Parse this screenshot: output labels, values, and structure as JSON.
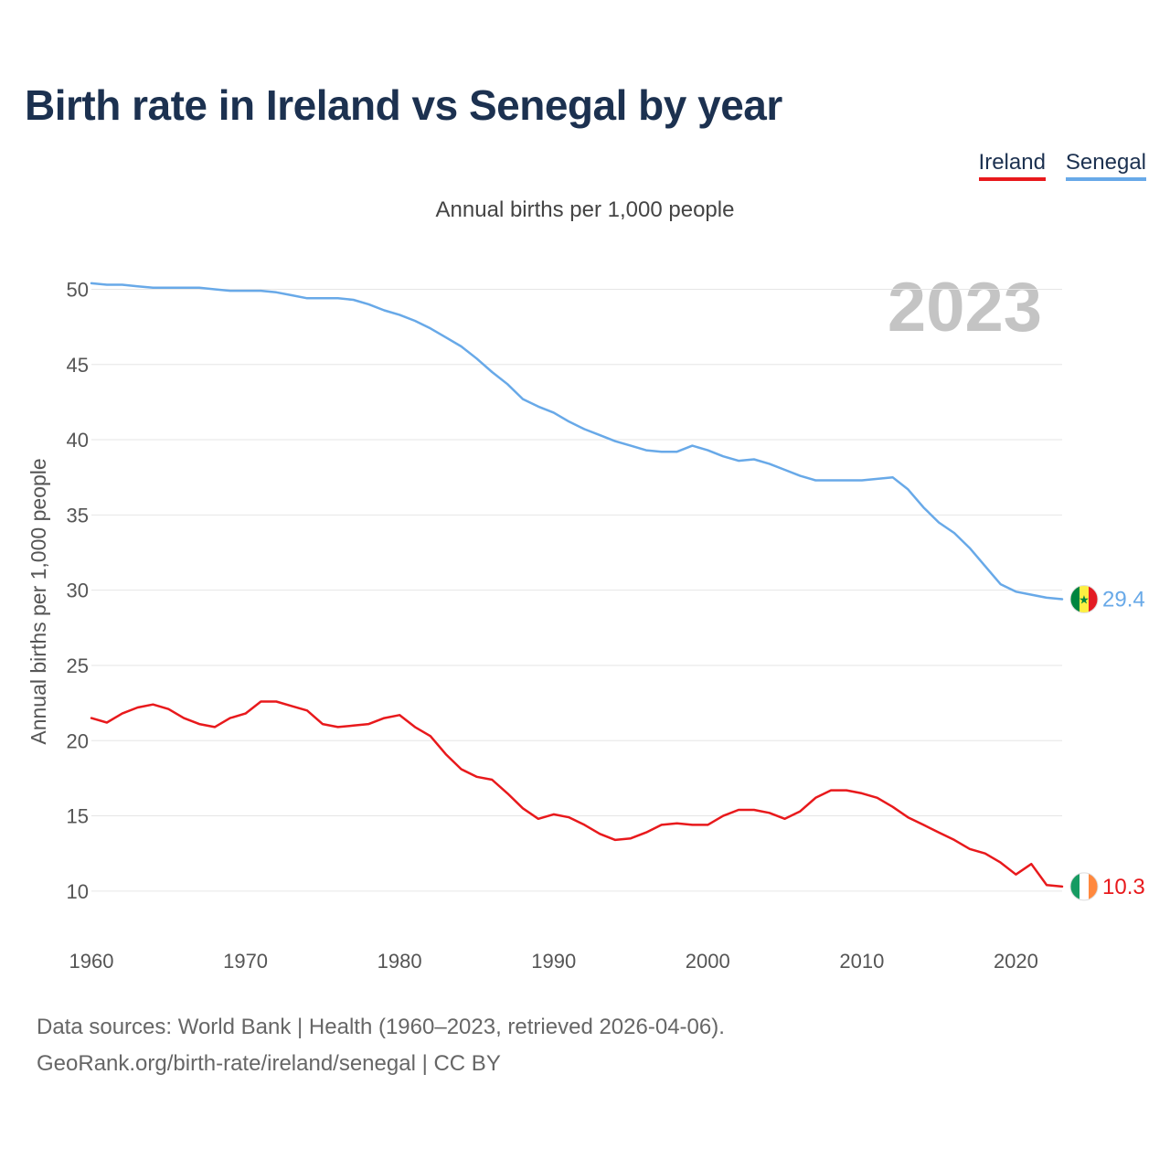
{
  "chart_data": {
    "type": "line",
    "title": "Birth rate in Ireland vs Senegal by year",
    "subtitle": "Annual births per 1,000 people",
    "ylabel": "Annual births per 1,000 people",
    "xlabel": "",
    "year_label": "2023",
    "xlim": [
      1960,
      2023
    ],
    "ylim": [
      7.5,
      51
    ],
    "yticks": [
      10,
      15,
      20,
      25,
      30,
      35,
      40,
      45,
      50
    ],
    "xticks": [
      1960,
      1970,
      1980,
      1990,
      2000,
      2010,
      2020
    ],
    "x": [
      1960,
      1961,
      1962,
      1963,
      1964,
      1965,
      1966,
      1967,
      1968,
      1969,
      1970,
      1971,
      1972,
      1973,
      1974,
      1975,
      1976,
      1977,
      1978,
      1979,
      1980,
      1981,
      1982,
      1983,
      1984,
      1985,
      1986,
      1987,
      1988,
      1989,
      1990,
      1991,
      1992,
      1993,
      1994,
      1995,
      1996,
      1997,
      1998,
      1999,
      2000,
      2001,
      2002,
      2003,
      2004,
      2005,
      2006,
      2007,
      2008,
      2009,
      2010,
      2011,
      2012,
      2013,
      2014,
      2015,
      2016,
      2017,
      2018,
      2019,
      2020,
      2021,
      2022,
      2023
    ],
    "series": [
      {
        "name": "Ireland",
        "color": "#e8191c",
        "end_label": "10.3",
        "flag": "ireland-flag",
        "values": [
          21.5,
          21.2,
          21.8,
          22.2,
          22.4,
          22.1,
          21.5,
          21.1,
          20.9,
          21.5,
          21.8,
          22.6,
          22.6,
          22.3,
          22.0,
          21.1,
          20.9,
          21.0,
          21.1,
          21.5,
          21.7,
          20.9,
          20.3,
          19.1,
          18.1,
          17.6,
          17.4,
          16.5,
          15.5,
          14.8,
          15.1,
          14.9,
          14.4,
          13.8,
          13.4,
          13.5,
          13.9,
          14.4,
          14.5,
          14.4,
          14.4,
          15.0,
          15.4,
          15.4,
          15.2,
          14.8,
          15.3,
          16.2,
          16.7,
          16.7,
          16.5,
          16.2,
          15.6,
          14.9,
          14.4,
          13.9,
          13.4,
          12.8,
          12.5,
          11.9,
          11.1,
          11.8,
          10.4,
          10.3
        ]
      },
      {
        "name": "Senegal",
        "color": "#68a9e8",
        "end_label": "29.4",
        "flag": "senegal-flag",
        "values": [
          50.4,
          50.3,
          50.3,
          50.2,
          50.1,
          50.1,
          50.1,
          50.1,
          50.0,
          49.9,
          49.9,
          49.9,
          49.8,
          49.6,
          49.4,
          49.4,
          49.4,
          49.3,
          49.0,
          48.6,
          48.3,
          47.9,
          47.4,
          46.8,
          46.2,
          45.4,
          44.5,
          43.7,
          42.7,
          42.2,
          41.8,
          41.2,
          40.7,
          40.3,
          39.9,
          39.6,
          39.3,
          39.2,
          39.2,
          39.6,
          39.3,
          38.9,
          38.6,
          38.7,
          38.4,
          38.0,
          37.6,
          37.3,
          37.3,
          37.3,
          37.3,
          37.4,
          37.5,
          36.7,
          35.5,
          34.5,
          33.8,
          32.8,
          31.6,
          30.4,
          29.9,
          29.7,
          29.5,
          29.4
        ]
      }
    ]
  },
  "legend": {
    "ireland": "Ireland",
    "senegal": "Senegal"
  },
  "footer": {
    "line1": "Data sources: World Bank | Health (1960–2023, retrieved 2026-04-06).",
    "line2": "GeoRank.org/birth-rate/ireland/senegal | CC BY"
  },
  "colors": {
    "title": "#1c3150",
    "grid": "#e6e6e6",
    "axis_text": "#555555",
    "year_watermark": "#c4c4c4"
  }
}
